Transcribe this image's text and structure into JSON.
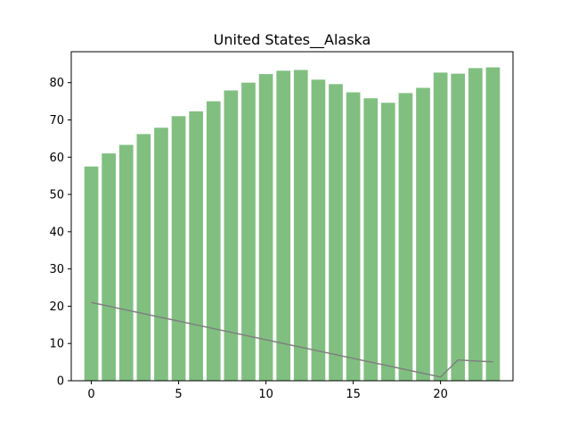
{
  "chart_data": {
    "type": "bar",
    "title": "United States__Alaska",
    "xlabel": "",
    "ylabel": "",
    "x": [
      0,
      1,
      2,
      3,
      4,
      5,
      6,
      7,
      8,
      9,
      10,
      11,
      12,
      13,
      14,
      15,
      16,
      17,
      18,
      19,
      20,
      21,
      22,
      23
    ],
    "series": [
      {
        "name": "bars",
        "type": "bar",
        "color": "#80bf80",
        "values": [
          57.5,
          61.0,
          63.3,
          66.2,
          67.9,
          71.0,
          72.3,
          75.0,
          77.9,
          80.0,
          82.3,
          83.2,
          83.4,
          80.8,
          79.6,
          77.4,
          75.8,
          74.6,
          77.2,
          78.6,
          82.7,
          82.4,
          83.9,
          84.1
        ]
      },
      {
        "name": "line",
        "type": "line",
        "color": "#808080",
        "values": [
          21.0,
          20.0,
          19.0,
          18.0,
          17.0,
          16.0,
          15.0,
          14.0,
          13.0,
          12.0,
          11.0,
          10.0,
          9.0,
          8.0,
          7.0,
          6.0,
          5.0,
          4.0,
          3.0,
          2.0,
          1.0,
          5.6,
          5.3,
          5.1
        ]
      }
    ],
    "xticks": [
      0,
      5,
      10,
      15,
      20
    ],
    "xtick_labels": [
      "0",
      "5",
      "10",
      "15",
      "20"
    ],
    "yticks": [
      0,
      10,
      20,
      30,
      40,
      50,
      60,
      70,
      80
    ],
    "ytick_labels": [
      "0",
      "10",
      "20",
      "30",
      "40",
      "50",
      "60",
      "70",
      "80"
    ],
    "xlim": [
      -1.15,
      24.15
    ],
    "ylim": [
      0,
      88.3
    ],
    "grid": false,
    "legend": "none"
  }
}
